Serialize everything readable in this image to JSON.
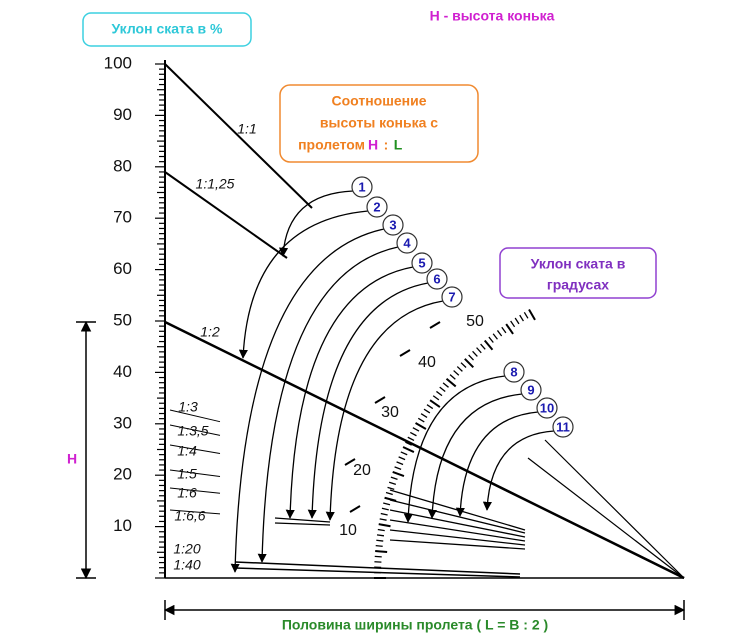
{
  "header": {
    "percent_title": "Уклон ската в %",
    "height_note": "H - высота конька"
  },
  "ratio_box": {
    "line1": "Соотношение",
    "line2": "высоты конька с",
    "line3": "пролетом",
    "h": "H",
    "colon": ":",
    "l": "L"
  },
  "degree_box": {
    "line1": "Уклон ската в",
    "line2": "градусах"
  },
  "percent_scale": [
    100,
    90,
    80,
    70,
    60,
    50,
    40,
    30,
    20,
    10
  ],
  "ratio_labels": [
    "1:1",
    "1:1,25",
    "1:2",
    "1:3",
    "1:3,5",
    "1:4",
    "1:5",
    "1:6",
    "1:6,6",
    "1:20",
    "1:40"
  ],
  "degree_labels": [
    50,
    40,
    30,
    20,
    10
  ],
  "markers": [
    1,
    2,
    3,
    4,
    5,
    6,
    7,
    8,
    9,
    10,
    11
  ],
  "height_label": "H",
  "base_label": "Половина ширины пролета ( L = B : 2 )"
}
